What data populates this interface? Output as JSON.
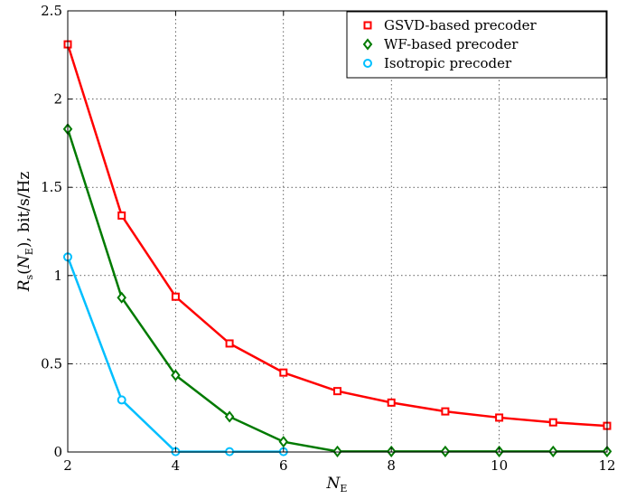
{
  "chart_data": {
    "type": "line",
    "xlabel": {
      "base": "N",
      "sub": "E"
    },
    "ylabel": {
      "parts": [
        {
          "t": "R",
          "italic": true
        },
        {
          "t": "s",
          "sub": true
        },
        {
          "t": "("
        },
        {
          "t": "N",
          "italic": true
        },
        {
          "t": "E",
          "sub": true
        },
        {
          "t": "), bit/s/Hz"
        }
      ]
    },
    "xlim": [
      2,
      12
    ],
    "ylim": [
      0,
      2.5
    ],
    "xticks": [
      "2",
      "4",
      "6",
      "8",
      "10",
      "12"
    ],
    "yticks": [
      "0",
      "0.5",
      "1",
      "1.5",
      "2",
      "2.5"
    ],
    "grid": true,
    "legend_position": "top-right",
    "x": [
      2,
      3,
      4,
      5,
      6,
      7,
      8,
      9,
      10,
      11,
      12
    ],
    "series": [
      {
        "name": "GSVD-based precoder",
        "color": "#ff0000",
        "marker": "square",
        "values": [
          2.31,
          1.34,
          0.88,
          0.615,
          0.45,
          0.345,
          0.28,
          0.23,
          0.195,
          0.168,
          0.148
        ]
      },
      {
        "name": "WF-based precoder",
        "color": "#007a00",
        "marker": "diamond",
        "values": [
          1.83,
          0.875,
          0.435,
          0.2,
          0.058,
          0.003,
          0.003,
          0.003,
          0.003,
          0.003,
          0.003
        ]
      },
      {
        "name": "Isotropic precoder",
        "color": "#00bfff",
        "marker": "circle",
        "values": [
          1.105,
          0.295,
          0.002,
          0.002,
          0.002,
          null,
          null,
          null,
          null,
          null,
          null
        ]
      }
    ]
  }
}
